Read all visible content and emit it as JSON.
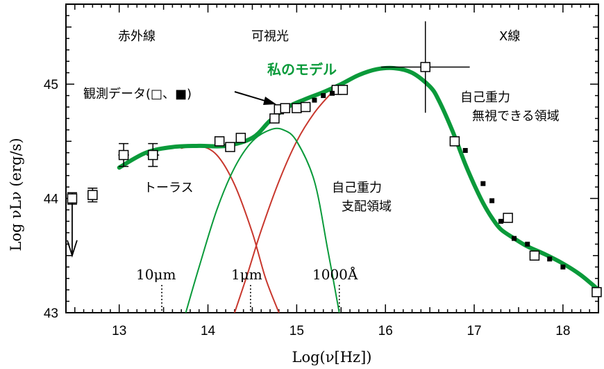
{
  "chart_data": {
    "type": "line",
    "xlabel": "Log(ν[Hz])",
    "ylabel": "Log νLν (erg/s)",
    "xlim": [
      12.4,
      18.4
    ],
    "ylim": [
      43,
      45.7
    ],
    "x_ticks": [
      13,
      14,
      15,
      16,
      17,
      18
    ],
    "y_ticks": [
      43,
      44,
      45
    ],
    "grid": false,
    "region_labels": {
      "infrared": "赤外線",
      "visible": "可視光",
      "xray": "X線"
    },
    "annotations": {
      "model": "私のモデル",
      "observations": "観測データ(□、■)",
      "torus": "トーラス",
      "self_gravity_dominated_1": "自己重力",
      "self_gravity_dominated_2": "支配領域",
      "self_gravity_negligible_1": "自己重力",
      "self_gravity_negligible_2": "無視できる領域"
    },
    "wavelength_markers": [
      {
        "label": "10μm",
        "x": 13.48
      },
      {
        "label": "1μm",
        "x": 14.48
      },
      {
        "label": "1000Å",
        "x": 15.48
      }
    ],
    "series": [
      {
        "name": "私のモデル",
        "color": "#0a9a3a",
        "style": "thick",
        "x": [
          13.0,
          13.3,
          13.6,
          13.9,
          14.2,
          14.5,
          14.7,
          14.9,
          15.1,
          15.3,
          15.5,
          15.7,
          15.9,
          16.1,
          16.3,
          16.5,
          16.6,
          16.75,
          16.9,
          17.0,
          17.1,
          17.2,
          17.3,
          17.45,
          17.6,
          17.8,
          18.0,
          18.2,
          18.4
        ],
        "y": [
          44.27,
          44.4,
          44.45,
          44.46,
          44.46,
          44.53,
          44.68,
          44.8,
          44.87,
          44.93,
          45.0,
          45.08,
          45.13,
          45.14,
          45.1,
          44.98,
          44.86,
          44.6,
          44.3,
          44.12,
          43.96,
          43.83,
          43.73,
          43.65,
          43.58,
          43.51,
          43.43,
          43.33,
          43.2
        ]
      },
      {
        "name": "",
        "color": "#c8372d",
        "x": [
          13.7,
          13.9,
          14.1,
          14.3,
          14.5,
          14.65,
          14.8
        ],
        "y": [
          44.44,
          44.46,
          44.38,
          44.12,
          43.7,
          43.3,
          43.0
        ]
      },
      {
        "name": "",
        "color": "#c8372d",
        "x": [
          14.3,
          14.45,
          14.6,
          14.8,
          15.0,
          15.2,
          15.4,
          15.5
        ],
        "y": [
          43.0,
          43.35,
          43.72,
          44.15,
          44.5,
          44.75,
          44.93,
          45.0
        ]
      },
      {
        "name": "",
        "color": "#0a9a3a",
        "x": [
          13.75,
          13.9,
          14.1,
          14.3,
          14.5,
          14.7,
          14.85,
          15.0,
          15.2,
          15.35,
          15.48
        ],
        "y": [
          43.0,
          43.4,
          43.9,
          44.27,
          44.5,
          44.6,
          44.6,
          44.5,
          44.15,
          43.55,
          43.0
        ]
      }
    ],
    "observations_open": [
      {
        "x": 12.47,
        "y": 44.0,
        "yerr": 0.05,
        "xerr": 0.05,
        "upper_limit": true
      },
      {
        "x": 12.7,
        "y": 44.03,
        "yerr": 0.06,
        "xerr": 0.05
      },
      {
        "x": 13.05,
        "y": 44.38,
        "yerr": 0.1,
        "xerr": 0.06
      },
      {
        "x": 13.38,
        "y": 44.38,
        "yerr": 0.1,
        "xerr": 0.07
      },
      {
        "x": 14.13,
        "y": 44.5
      },
      {
        "x": 14.25,
        "y": 44.45
      },
      {
        "x": 14.37,
        "y": 44.53
      },
      {
        "x": 14.75,
        "y": 44.7
      },
      {
        "x": 14.8,
        "y": 44.78
      },
      {
        "x": 14.87,
        "y": 44.79
      },
      {
        "x": 15.0,
        "y": 44.79
      },
      {
        "x": 15.1,
        "y": 44.8
      },
      {
        "x": 15.45,
        "y": 44.95
      },
      {
        "x": 15.52,
        "y": 44.95
      },
      {
        "x": 16.45,
        "y": 45.15,
        "xerr": 0.5,
        "yerr": 0.4
      },
      {
        "x": 16.78,
        "y": 44.5
      },
      {
        "x": 17.38,
        "y": 43.83
      },
      {
        "x": 17.68,
        "y": 43.5
      },
      {
        "x": 18.38,
        "y": 43.18
      }
    ],
    "observations_filled": [
      {
        "x": 15.2,
        "y": 44.86
      },
      {
        "x": 15.3,
        "y": 44.9
      },
      {
        "x": 15.4,
        "y": 44.92
      },
      {
        "x": 16.9,
        "y": 44.42
      },
      {
        "x": 17.1,
        "y": 44.13
      },
      {
        "x": 17.2,
        "y": 43.98
      },
      {
        "x": 17.3,
        "y": 43.8
      },
      {
        "x": 17.45,
        "y": 43.65
      },
      {
        "x": 17.6,
        "y": 43.6
      },
      {
        "x": 17.85,
        "y": 43.47
      },
      {
        "x": 18.0,
        "y": 43.4
      }
    ]
  }
}
